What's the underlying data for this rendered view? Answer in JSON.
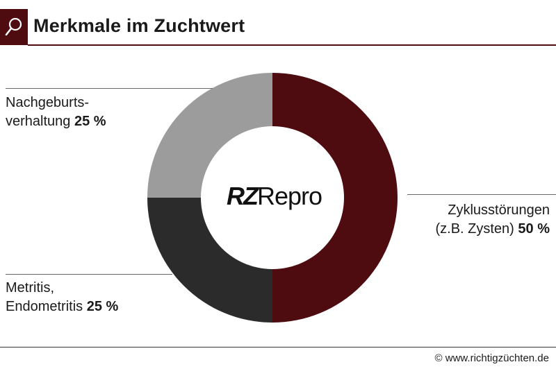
{
  "header": {
    "title": "Merkmale im Zuchtwert",
    "icon": "magnifier-icon",
    "accent_color": "#4e0b10"
  },
  "logo": {
    "part1": "RZ",
    "part2": "Repro"
  },
  "chart_data": {
    "type": "pie",
    "donut": true,
    "slices": [
      {
        "label_line1": "Zyklusstörungen",
        "label_line2": "(z.B. Zysten)",
        "value": 50,
        "value_text": "50 %",
        "color": "#4e0b10"
      },
      {
        "label_line1": "Metritis,",
        "label_line2": "Endometritis",
        "value": 25,
        "value_text": "25 %",
        "color": "#2b2b2b"
      },
      {
        "label_line1": "Nachgeburts-",
        "label_line2": "verhaltung",
        "value": 25,
        "value_text": "25 %",
        "color": "#9c9c9c"
      }
    ]
  },
  "footer": {
    "copyright": "© www.richtigzüchten.de"
  }
}
